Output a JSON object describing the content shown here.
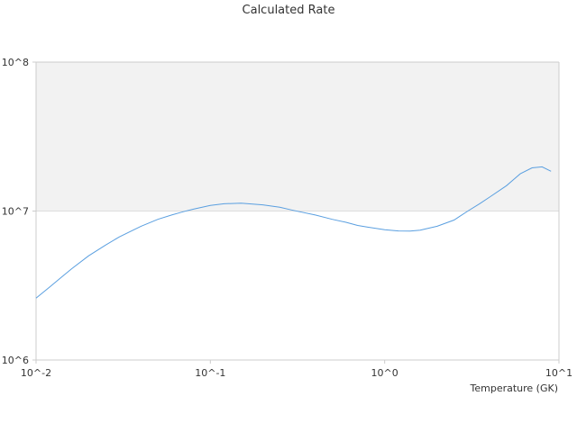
{
  "chart_data": {
    "type": "line",
    "title": "Calculated Rate",
    "xlabel": "Temperature (GK)",
    "ylabel": "",
    "xscale": "log",
    "yscale": "log",
    "xlim": [
      0.01,
      10
    ],
    "ylim": [
      1000000,
      100000000
    ],
    "x_ticks": [
      "10^-2",
      "10^-1",
      "10^0",
      "10^1"
    ],
    "y_ticks": [
      "10^6",
      "10^7",
      "10^8"
    ],
    "grid": false,
    "legend": "none",
    "shaded_band": {
      "y_from": 10000000,
      "y_to": 100000000,
      "color": "#f2f2f2"
    },
    "colors": {
      "line": "#5a9fe0",
      "band": "#f2f2f2",
      "axis": "#cccccc"
    },
    "series": [
      {
        "x": [
          0.01,
          0.012,
          0.014,
          0.016,
          0.02,
          0.025,
          0.03,
          0.04,
          0.05,
          0.06,
          0.07,
          0.08,
          0.1,
          0.12,
          0.15,
          0.2,
          0.25,
          0.3,
          0.4,
          0.5,
          0.6,
          0.7,
          0.8,
          1.0,
          1.2,
          1.4,
          1.6,
          2.0,
          2.5,
          3.0,
          3.5,
          4.0,
          5.0,
          5.5,
          6.0,
          7.0,
          8.0,
          9.0
        ],
        "y": [
          2600000,
          3100000,
          3600000,
          4100000,
          5000000,
          5900000,
          6700000,
          7900000,
          8800000,
          9400000,
          9900000,
          10300000,
          10900000,
          11200000,
          11300000,
          11000000,
          10600000,
          10100000,
          9400000,
          8800000,
          8400000,
          8000000,
          7800000,
          7500000,
          7350000,
          7330000,
          7450000,
          7900000,
          8700000,
          10000000,
          11200000,
          12400000,
          14800000,
          16300000,
          17800000,
          19500000,
          19800000,
          18500000
        ]
      }
    ]
  }
}
